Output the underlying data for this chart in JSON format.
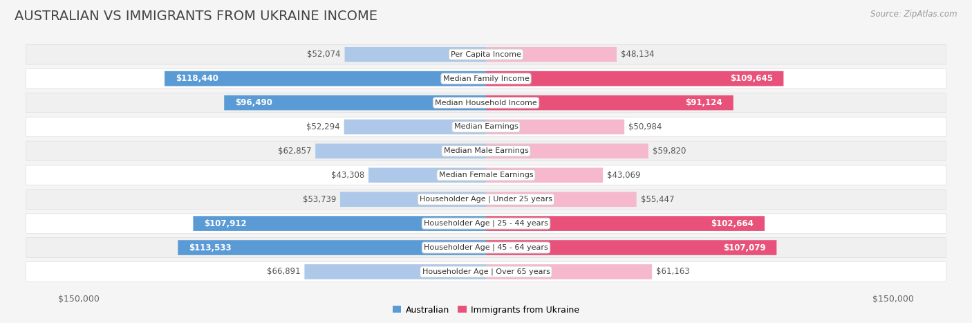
{
  "title": "AUSTRALIAN VS IMMIGRANTS FROM UKRAINE INCOME",
  "source": "Source: ZipAtlas.com",
  "categories": [
    "Per Capita Income",
    "Median Family Income",
    "Median Household Income",
    "Median Earnings",
    "Median Male Earnings",
    "Median Female Earnings",
    "Householder Age | Under 25 years",
    "Householder Age | 25 - 44 years",
    "Householder Age | 45 - 64 years",
    "Householder Age | Over 65 years"
  ],
  "australian_values": [
    52074,
    118440,
    96490,
    52294,
    62857,
    43308,
    53739,
    107912,
    113533,
    66891
  ],
  "ukraine_values": [
    48134,
    109645,
    91124,
    50984,
    59820,
    43069,
    55447,
    102664,
    107079,
    61163
  ],
  "australian_labels": [
    "$52,074",
    "$118,440",
    "$96,490",
    "$52,294",
    "$62,857",
    "$43,308",
    "$53,739",
    "$107,912",
    "$113,533",
    "$66,891"
  ],
  "ukraine_labels": [
    "$48,134",
    "$109,645",
    "$91,124",
    "$50,984",
    "$59,820",
    "$43,069",
    "$55,447",
    "$102,664",
    "$107,079",
    "$61,163"
  ],
  "max_value": 150000,
  "australian_color_light": "#adc8e8",
  "australian_color_strong": "#5b9bd5",
  "ukraine_color_light": "#f5b8cc",
  "ukraine_color_strong": "#e8527a",
  "row_colors": [
    "#f0f0f0",
    "#ffffff",
    "#f0f0f0",
    "#ffffff",
    "#f0f0f0",
    "#ffffff",
    "#f0f0f0",
    "#ffffff",
    "#f0f0f0",
    "#ffffff"
  ],
  "bg_color": "#f5f5f5",
  "label_dark": "#555555",
  "label_white": "#ffffff",
  "threshold_white_label": 75000,
  "title_fontsize": 14,
  "label_fontsize": 8.5,
  "cat_fontsize": 8,
  "source_fontsize": 8.5,
  "legend_fontsize": 9
}
